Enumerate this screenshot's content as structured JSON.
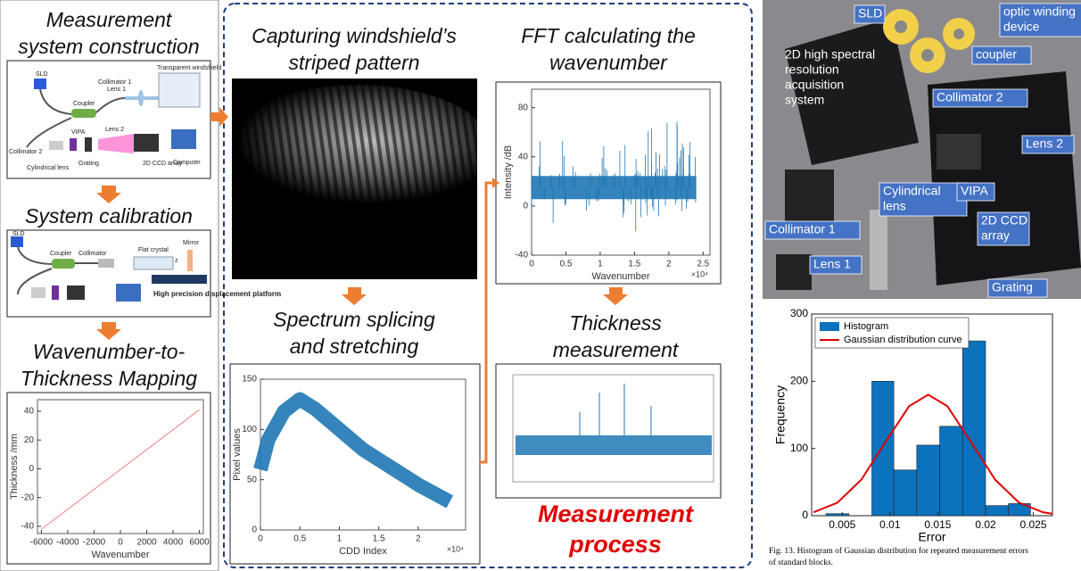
{
  "left": {
    "title1": [
      "Measurement",
      "system construction"
    ],
    "system_labels": [
      "SLD",
      "Collimator 1",
      "Transparent windshield",
      "Coupler",
      "Lens 1",
      "Collimator 2",
      "VIPA",
      "Lens 2",
      "Cylindrical lens",
      "Grating",
      "2D CCD array",
      "Computer"
    ],
    "title2": [
      "System calibration"
    ],
    "calib_labels": [
      "SLD",
      "Coupler",
      "Collimator",
      "Flat crystal",
      "Mirror",
      "z",
      "High precision displacement platform"
    ],
    "title3": [
      "Wavenumber-to-",
      "Thickness Mapping"
    ],
    "plot": {
      "xlabel": "Wavenumber",
      "ylabel": "Thickness /mm",
      "xlim": [
        -6300,
        6300
      ],
      "ylim": [
        -45,
        48
      ],
      "xticks": [
        -6000,
        -4000,
        -2000,
        0,
        2000,
        4000,
        6000
      ],
      "yticks": [
        -40,
        -20,
        0,
        20,
        40
      ],
      "line": {
        "x": [
          -6000,
          6000
        ],
        "y": [
          -42,
          41
        ]
      }
    }
  },
  "middle": {
    "title1": [
      "Capturing windshield’s",
      "striped pattern"
    ],
    "title2": [
      "Spectrum splicing",
      "and stretching"
    ],
    "spectrum": {
      "xlabel": "CDD Index",
      "ylabel": "Pixel values",
      "exponent": "×10⁴",
      "xlim": [
        0,
        2.6
      ],
      "ylim": [
        0,
        150
      ],
      "xticks": [
        0,
        0.5,
        1,
        1.5,
        2
      ],
      "yticks": [
        0,
        50,
        100,
        150
      ],
      "envelope": {
        "x": [
          0,
          0.1,
          0.3,
          0.5,
          0.7,
          1,
          1.3,
          1.6,
          2,
          2.4
        ],
        "y": [
          60,
          90,
          118,
          130,
          120,
          100,
          80,
          65,
          45,
          28
        ]
      }
    },
    "title3": [
      "FFT calculating the",
      "wavenumber"
    ],
    "fft": {
      "xlabel": "Wavenumber",
      "ylabel": "Intensity /dB",
      "exponent": "×10⁴",
      "xlim": [
        0,
        2.6
      ],
      "ylim": [
        -40,
        95
      ],
      "xticks": [
        0,
        0.5,
        1,
        1.5,
        2,
        2.5
      ],
      "yticks": [
        -40,
        0,
        40,
        80
      ],
      "baseline": {
        "x": [
          0,
          2.4
        ],
        "y": [
          15,
          15
        ]
      }
    },
    "title4": [
      "Thickness",
      "measurement"
    ],
    "process": [
      "Measurement",
      "process"
    ]
  },
  "photo": {
    "labels": [
      {
        "lines": [
          "SLD"
        ],
        "boxed": true
      },
      {
        "lines": [
          "optic winding",
          "device"
        ],
        "boxed": true
      },
      {
        "lines": [
          "coupler"
        ],
        "boxed": true
      },
      {
        "lines": [
          "2D high spectral",
          "resolution",
          "acquisition",
          "system"
        ],
        "boxed": false
      },
      {
        "lines": [
          "Collimator 2"
        ],
        "boxed": true
      },
      {
        "lines": [
          "Lens 2"
        ],
        "boxed": true
      },
      {
        "lines": [
          "Cylindrical",
          "lens"
        ],
        "boxed": true
      },
      {
        "lines": [
          "VIPA"
        ],
        "boxed": true
      },
      {
        "lines": [
          "2D CCD",
          "array"
        ],
        "boxed": true
      },
      {
        "lines": [
          "Collimator 1"
        ],
        "boxed": true
      },
      {
        "lines": [
          "Lens 1"
        ],
        "boxed": true
      },
      {
        "lines": [
          "Grating"
        ],
        "boxed": true
      }
    ]
  },
  "chart_data": {
    "type": "histogram",
    "xlabel": "Error",
    "ylabel": "Frequency",
    "bins": [
      0.0033,
      0.0057,
      0.0081,
      0.0104,
      0.0128,
      0.0152,
      0.0176,
      0.02,
      0.0224,
      0.0247
    ],
    "counts": [
      3,
      0,
      200,
      68,
      105,
      133,
      260,
      15,
      18
    ],
    "color": "#0b72bd",
    "curve": {
      "name": "Gaussian distribution curve",
      "color": "#e00000",
      "x": [
        0.002,
        0.0045,
        0.007,
        0.0095,
        0.012,
        0.014,
        0.016,
        0.0185,
        0.021,
        0.0235,
        0.026,
        0.027
      ],
      "y": [
        5.1,
        19.4,
        53.6,
        109,
        163,
        180,
        163,
        109,
        53.6,
        19.4,
        5.1,
        2.8
      ]
    },
    "bar_name": "Histogram",
    "legend": "upper left",
    "xlim": [
      0.0018,
      0.027
    ],
    "ylim": [
      0,
      300
    ],
    "xticks": [
      0.005,
      0.01,
      0.015,
      0.02,
      0.025
    ],
    "yticks": [
      0,
      100,
      200,
      300
    ],
    "caption": [
      "Fig. 13.   Histogram of Gaussian distribution for repeated measurement errors",
      "of standard blocks."
    ]
  }
}
